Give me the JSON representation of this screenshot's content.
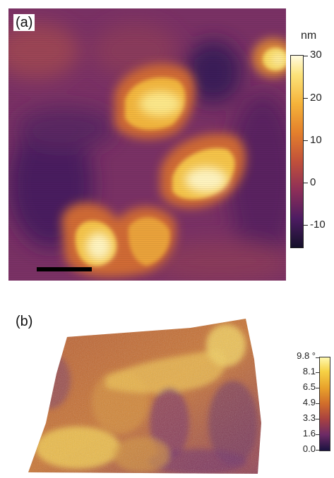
{
  "panel_a": {
    "label": "(a)",
    "colorbar": {
      "unit": "nm",
      "ticks": [
        "30",
        "20",
        "10",
        "0",
        "-10"
      ]
    }
  },
  "panel_b": {
    "label": "(b)",
    "colorbar": {
      "ticks": [
        "9.8 °",
        "8.1",
        "6.5",
        "4.9",
        "3.3",
        "1.6",
        "0.0"
      ]
    }
  }
}
